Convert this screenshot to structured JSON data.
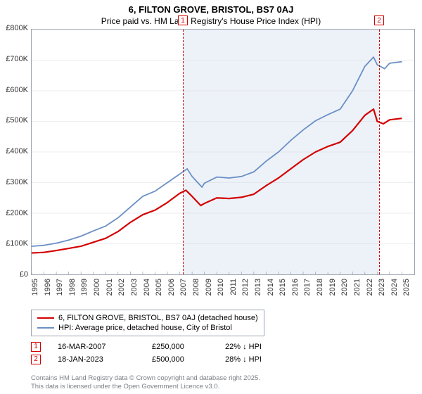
{
  "title": "6, FILTON GROVE, BRISTOL, BS7 0AJ",
  "subtitle": "Price paid vs. HM Land Registry's House Price Index (HPI)",
  "chart": {
    "type": "line",
    "background_color": "#ffffff",
    "border_color": "#9aa4b0",
    "shadeband_color": "#edf2f8",
    "shadeband_year_start": 2007.2,
    "shadeband_year_end": 2023.05,
    "xlim": [
      1995,
      2026
    ],
    "ylim": [
      0,
      800000
    ],
    "xticks": [
      1995,
      1996,
      1997,
      1998,
      1999,
      2000,
      2001,
      2002,
      2003,
      2004,
      2005,
      2006,
      2007,
      2008,
      2009,
      2010,
      2011,
      2012,
      2013,
      2014,
      2015,
      2016,
      2017,
      2018,
      2019,
      2020,
      2021,
      2022,
      2023,
      2024,
      2025
    ],
    "yticks": [
      0,
      100000,
      200000,
      300000,
      400000,
      500000,
      600000,
      700000,
      800000
    ],
    "ytick_labels": [
      "£0",
      "£100K",
      "£200K",
      "£300K",
      "£400K",
      "£500K",
      "£600K",
      "£700K",
      "£800K"
    ],
    "tick_fontsize": 11,
    "grid_color": "#d9dde2",
    "series": [
      {
        "name": "price_paid",
        "label": "6, FILTON GROVE, BRISTOL, BS7 0AJ (detached house)",
        "color": "#d40000",
        "width": 2.2,
        "data": [
          [
            1995,
            70000
          ],
          [
            1996,
            72000
          ],
          [
            1997,
            78000
          ],
          [
            1998,
            85000
          ],
          [
            1999,
            92000
          ],
          [
            2000,
            105000
          ],
          [
            2001,
            118000
          ],
          [
            2002,
            140000
          ],
          [
            2003,
            170000
          ],
          [
            2004,
            195000
          ],
          [
            2005,
            210000
          ],
          [
            2006,
            235000
          ],
          [
            2007,
            265000
          ],
          [
            2007.5,
            275000
          ],
          [
            2008,
            255000
          ],
          [
            2008.7,
            225000
          ],
          [
            2009,
            232000
          ],
          [
            2010,
            250000
          ],
          [
            2011,
            248000
          ],
          [
            2012,
            252000
          ],
          [
            2013,
            262000
          ],
          [
            2014,
            290000
          ],
          [
            2015,
            315000
          ],
          [
            2016,
            345000
          ],
          [
            2017,
            375000
          ],
          [
            2018,
            400000
          ],
          [
            2019,
            418000
          ],
          [
            2020,
            432000
          ],
          [
            2021,
            470000
          ],
          [
            2022,
            520000
          ],
          [
            2022.7,
            540000
          ],
          [
            2023,
            500000
          ],
          [
            2023.5,
            492000
          ],
          [
            2024,
            505000
          ],
          [
            2025,
            510000
          ]
        ]
      },
      {
        "name": "hpi",
        "label": "HPI: Average price, detached house, City of Bristol",
        "color": "#6a8fc5",
        "width": 1.8,
        "data": [
          [
            1995,
            92000
          ],
          [
            1996,
            95000
          ],
          [
            1997,
            102000
          ],
          [
            1998,
            112000
          ],
          [
            1999,
            125000
          ],
          [
            2000,
            142000
          ],
          [
            2001,
            158000
          ],
          [
            2002,
            185000
          ],
          [
            2003,
            220000
          ],
          [
            2004,
            255000
          ],
          [
            2005,
            272000
          ],
          [
            2006,
            300000
          ],
          [
            2007,
            328000
          ],
          [
            2007.6,
            345000
          ],
          [
            2008,
            320000
          ],
          [
            2008.8,
            285000
          ],
          [
            2009,
            298000
          ],
          [
            2010,
            318000
          ],
          [
            2011,
            315000
          ],
          [
            2012,
            320000
          ],
          [
            2013,
            335000
          ],
          [
            2014,
            370000
          ],
          [
            2015,
            400000
          ],
          [
            2016,
            438000
          ],
          [
            2017,
            472000
          ],
          [
            2018,
            502000
          ],
          [
            2019,
            522000
          ],
          [
            2020,
            540000
          ],
          [
            2021,
            600000
          ],
          [
            2022,
            680000
          ],
          [
            2022.7,
            710000
          ],
          [
            2023,
            685000
          ],
          [
            2023.6,
            672000
          ],
          [
            2024,
            690000
          ],
          [
            2025,
            695000
          ]
        ]
      }
    ],
    "markers": [
      {
        "id": "1",
        "year": 2007.21,
        "color": "#d40000"
      },
      {
        "id": "2",
        "year": 2023.05,
        "color": "#d40000"
      }
    ]
  },
  "legend": {
    "rows": [
      {
        "color": "#d40000",
        "label": "6, FILTON GROVE, BRISTOL, BS7 0AJ (detached house)"
      },
      {
        "color": "#6a8fc5",
        "label": "HPI: Average price, detached house, City of Bristol"
      }
    ]
  },
  "sales": [
    {
      "id": "1",
      "color": "#d40000",
      "date": "16-MAR-2007",
      "price": "£250,000",
      "delta": "22% ↓ HPI"
    },
    {
      "id": "2",
      "color": "#d40000",
      "date": "18-JAN-2023",
      "price": "£500,000",
      "delta": "28% ↓ HPI"
    }
  ],
  "footer": {
    "line1": "Contains HM Land Registry data © Crown copyright and database right 2025.",
    "line2": "This data is licensed under the Open Government Licence v3.0."
  }
}
